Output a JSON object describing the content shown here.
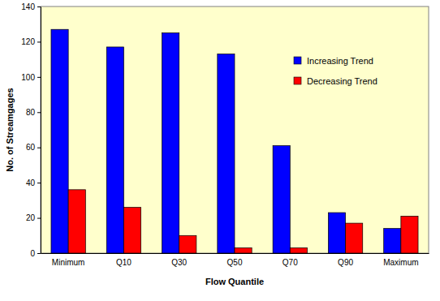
{
  "chart_data": {
    "type": "bar",
    "categories": [
      "Minimum",
      "Q10",
      "Q30",
      "Q50",
      "Q70",
      "Q90",
      "Maximum"
    ],
    "series": [
      {
        "name": "Increasing Trend",
        "color": "#0000ff",
        "values": [
          127,
          117,
          125,
          113,
          61,
          23,
          14
        ]
      },
      {
        "name": "Decreasing Trend",
        "color": "#ff0000",
        "values": [
          36,
          26,
          10,
          3,
          3,
          17,
          21
        ]
      }
    ],
    "x_label": "Flow Quantile",
    "y_label": "No. of Streamgages",
    "ylim": [
      0,
      140
    ],
    "yticks": [
      0,
      20,
      40,
      60,
      80,
      100,
      120,
      140
    ],
    "legend": "upper right"
  }
}
